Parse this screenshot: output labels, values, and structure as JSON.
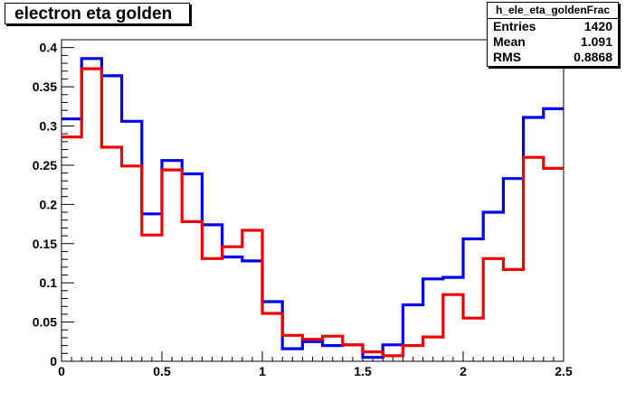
{
  "title": "electron eta golden",
  "stats": {
    "name": "h_ele_eta_goldenFrac",
    "rows": [
      {
        "label": "Entries",
        "value": "1420"
      },
      {
        "label": "Mean",
        "value": "1.091"
      },
      {
        "label": "RMS",
        "value": "0.8868"
      }
    ]
  },
  "chart_data": {
    "type": "histogram",
    "title": "electron eta golden",
    "xlim": [
      0,
      2.5
    ],
    "ylim": [
      0,
      0.41
    ],
    "bin_width": 0.1,
    "x_ticks": [
      {
        "value": 0,
        "label": "0"
      },
      {
        "value": 0.5,
        "label": "0.5"
      },
      {
        "value": 1,
        "label": "1"
      },
      {
        "value": 1.5,
        "label": "1.5"
      },
      {
        "value": 2,
        "label": "2"
      },
      {
        "value": 2.5,
        "label": "2.5"
      }
    ],
    "y_ticks": [
      {
        "value": 0,
        "label": "0"
      },
      {
        "value": 0.05,
        "label": "0.05"
      },
      {
        "value": 0.1,
        "label": "0.1"
      },
      {
        "value": 0.15,
        "label": "0.15"
      },
      {
        "value": 0.2,
        "label": "0.2"
      },
      {
        "value": 0.25,
        "label": "0.25"
      },
      {
        "value": 0.3,
        "label": "0.3"
      },
      {
        "value": 0.35,
        "label": "0.35"
      },
      {
        "value": 0.4,
        "label": "0.4"
      }
    ],
    "grid": false,
    "series": [
      {
        "color": "#0000ee",
        "bin_edges_start": 0,
        "values": [
          0.309,
          0.386,
          0.364,
          0.306,
          0.188,
          0.256,
          0.239,
          0.174,
          0.133,
          0.128,
          0.076,
          0.016,
          0.025,
          0.02,
          0.021,
          0.005,
          0.021,
          0.072,
          0.105,
          0.107,
          0.156,
          0.19,
          0.233,
          0.311,
          0.322
        ]
      },
      {
        "color": "#ee0000",
        "bin_edges_start": 0,
        "values": [
          0.286,
          0.373,
          0.273,
          0.249,
          0.161,
          0.244,
          0.178,
          0.131,
          0.146,
          0.167,
          0.061,
          0.033,
          0.028,
          0.032,
          0.021,
          0.012,
          0.007,
          0.02,
          0.031,
          0.085,
          0.055,
          0.131,
          0.117,
          0.26,
          0.246
        ]
      }
    ]
  }
}
